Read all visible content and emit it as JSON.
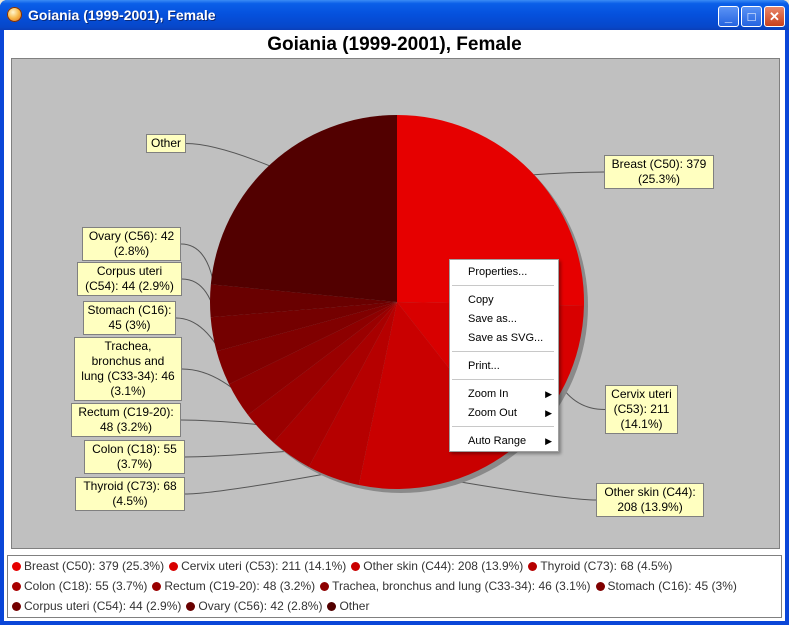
{
  "window": {
    "title": "Goiania (1999-2001), Female",
    "controls": {
      "minimize": "_",
      "maximize": "□",
      "close": "✕"
    }
  },
  "chart_data": {
    "type": "pie",
    "title": "Goiania (1999-2001), Female",
    "slices": [
      {
        "label": "Breast (C50): 379 (25.3%)",
        "value": 379,
        "percent": 25.3,
        "color": "#e60000"
      },
      {
        "label": "Cervix uteri (C53): 211 (14.1%)",
        "value": 211,
        "percent": 14.1,
        "color": "#d80000"
      },
      {
        "label": "Other skin (C44): 208 (13.9%)",
        "value": 208,
        "percent": 13.9,
        "color": "#c90000"
      },
      {
        "label": "Thyroid (C73): 68 (4.5%)",
        "value": 68,
        "percent": 4.5,
        "color": "#b60000"
      },
      {
        "label": "Colon (C18): 55 (3.7%)",
        "value": 55,
        "percent": 3.7,
        "color": "#a80000"
      },
      {
        "label": "Rectum (C19-20): 48 (3.2%)",
        "value": 48,
        "percent": 3.2,
        "color": "#9a0000"
      },
      {
        "label": "Trachea, bronchus and lung (C33-34): 46 (3.1%)",
        "value": 46,
        "percent": 3.1,
        "color": "#8d0000"
      },
      {
        "label": "Stomach (C16): 45 (3%)",
        "value": 45,
        "percent": 3.0,
        "color": "#800000"
      },
      {
        "label": "Corpus uteri (C54): 44 (2.9%)",
        "value": 44,
        "percent": 2.9,
        "color": "#740000"
      },
      {
        "label": "Ovary (C56): 42 (2.8%)",
        "value": 42,
        "percent": 2.8,
        "color": "#690000"
      },
      {
        "label": "Other",
        "value": 352,
        "color": "#520000"
      }
    ],
    "callouts": [
      {
        "lines": [
          "Breast (C50): 379",
          "(25.3%)"
        ]
      },
      {
        "lines": [
          "Cervix uteri",
          "(C53): 211",
          "(14.1%)"
        ]
      },
      {
        "lines": [
          "Other skin (C44):",
          "208 (13.9%)"
        ]
      },
      {
        "lines": [
          "Thyroid (C73): 68",
          "(4.5%)"
        ]
      },
      {
        "lines": [
          "Colon (C18): 55",
          "(3.7%)"
        ]
      },
      {
        "lines": [
          "Rectum (C19-20):",
          "48 (3.2%)"
        ]
      },
      {
        "lines": [
          "Trachea,",
          "bronchus and",
          "lung (C33-34): 46",
          "(3.1%)"
        ]
      },
      {
        "lines": [
          "Stomach (C16):",
          "45 (3%)"
        ]
      },
      {
        "lines": [
          "Corpus uteri",
          "(C54): 44 (2.9%)"
        ]
      },
      {
        "lines": [
          "Ovary (C56): 42",
          "(2.8%)"
        ]
      },
      {
        "lines": [
          "Other"
        ]
      }
    ],
    "legend": [
      [
        {
          "label": "Breast (C50): 379 (25.3%)",
          "color": "#e60000"
        },
        {
          "label": "Cervix uteri (C53): 211 (14.1%)",
          "color": "#d80000"
        },
        {
          "label": "Other skin (C44): 208 (13.9%)",
          "color": "#c90000"
        },
        {
          "label": "Thyroid (C73): 68 (4.5%)",
          "color": "#b60000"
        }
      ],
      [
        {
          "label": "Colon (C18): 55 (3.7%)",
          "color": "#a80000"
        },
        {
          "label": "Rectum (C19-20): 48 (3.2%)",
          "color": "#9a0000"
        },
        {
          "label": "Trachea, bronchus and lung (C33-34): 46 (3.1%)",
          "color": "#8d0000"
        },
        {
          "label": "Stomach (C16): 45 (3%)",
          "color": "#800000"
        }
      ],
      [
        {
          "label": "Corpus uteri (C54): 44 (2.9%)",
          "color": "#740000"
        },
        {
          "label": "Ovary (C56): 42 (2.8%)",
          "color": "#690000"
        },
        {
          "label": "Other",
          "color": "#520000"
        }
      ]
    ]
  },
  "context_menu": {
    "properties": "Properties...",
    "copy": "Copy",
    "save_as": "Save as...",
    "save_as_svg": "Save as SVG...",
    "print": "Print...",
    "zoom_in": "Zoom In",
    "zoom_out": "Zoom Out",
    "auto_range": "Auto Range",
    "submenu_arrow": "▶"
  },
  "colors": {
    "plot_background": "#c0c0c0",
    "label_background": "#ffffc0",
    "title_bar": "#0550dc"
  }
}
